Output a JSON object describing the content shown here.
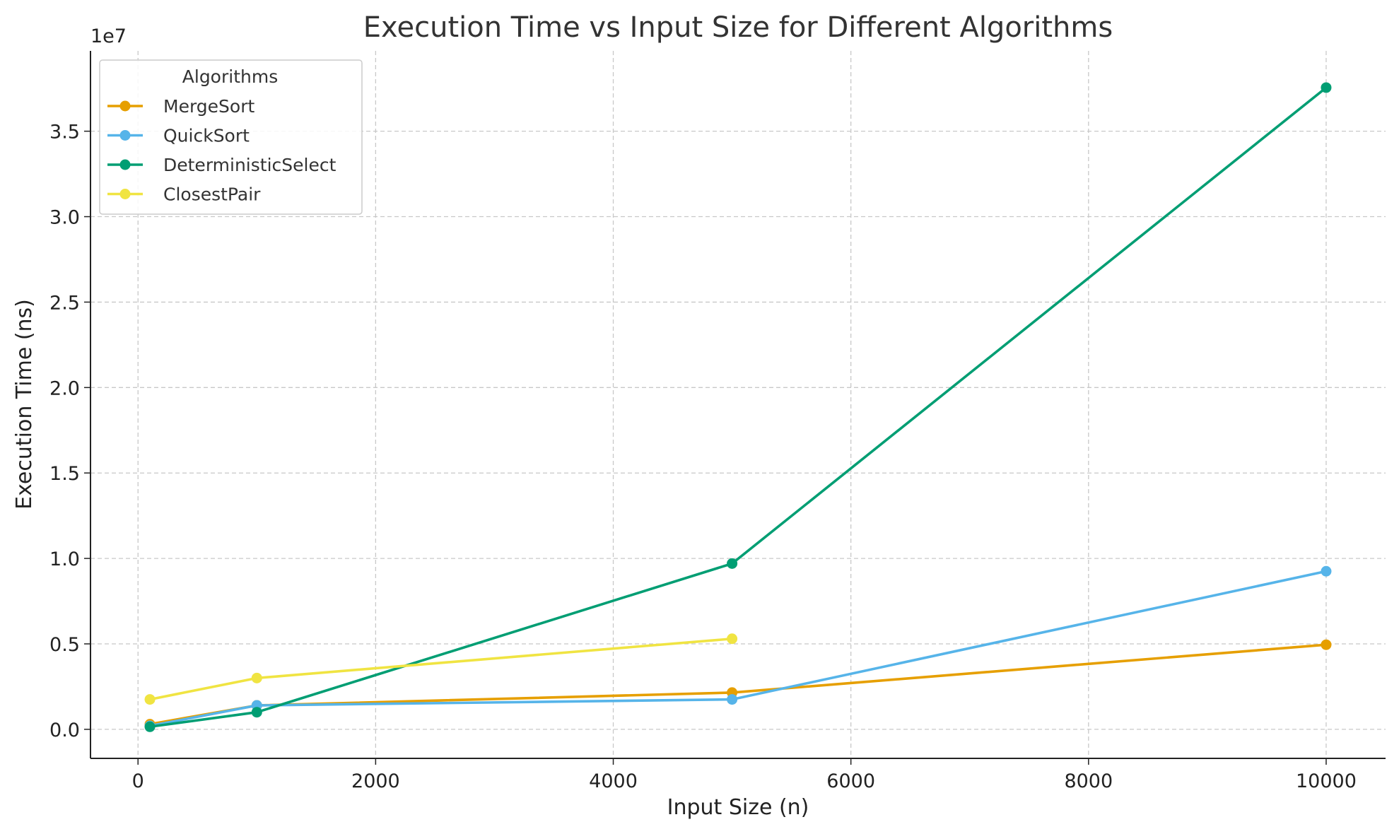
{
  "chart_data": {
    "type": "line",
    "title": "Execution Time vs Input Size for Different Algorithms",
    "xlabel": "Input Size (n)",
    "ylabel": "Execution Time (ns)",
    "y_offset_text": "1e7",
    "xlim": [
      -400,
      10500
    ],
    "ylim": [
      -0.17,
      3.97
    ],
    "y_scale_factor": 10000000,
    "x_ticks": [
      0,
      2000,
      4000,
      6000,
      8000,
      10000
    ],
    "x_tick_labels": [
      "0",
      "2000",
      "4000",
      "6000",
      "8000",
      "10000"
    ],
    "y_ticks": [
      0.0,
      0.5,
      1.0,
      1.5,
      2.0,
      2.5,
      3.0,
      3.5
    ],
    "y_tick_labels": [
      "0.0",
      "0.5",
      "1.0",
      "1.5",
      "2.0",
      "2.5",
      "3.0",
      "3.5"
    ],
    "grid": true,
    "legend": {
      "title": "Algorithms",
      "placement": "top-left"
    },
    "series": [
      {
        "name": "MergeSort",
        "color": "#E69F00",
        "x": [
          100,
          1000,
          5000,
          10000
        ],
        "y": [
          0.03,
          0.14,
          0.215,
          0.495
        ]
      },
      {
        "name": "QuickSort",
        "color": "#56B4E9",
        "x": [
          100,
          1000,
          5000,
          10000
        ],
        "y": [
          0.02,
          0.14,
          0.175,
          0.925
        ]
      },
      {
        "name": "DeterministicSelect",
        "color": "#009E73",
        "x": [
          100,
          1000,
          5000,
          10000
        ],
        "y": [
          0.015,
          0.1,
          0.97,
          3.755
        ]
      },
      {
        "name": "ClosestPair",
        "color": "#F0E442",
        "x": [
          100,
          1000,
          5000
        ],
        "y": [
          0.175,
          0.3,
          0.53
        ]
      }
    ]
  }
}
